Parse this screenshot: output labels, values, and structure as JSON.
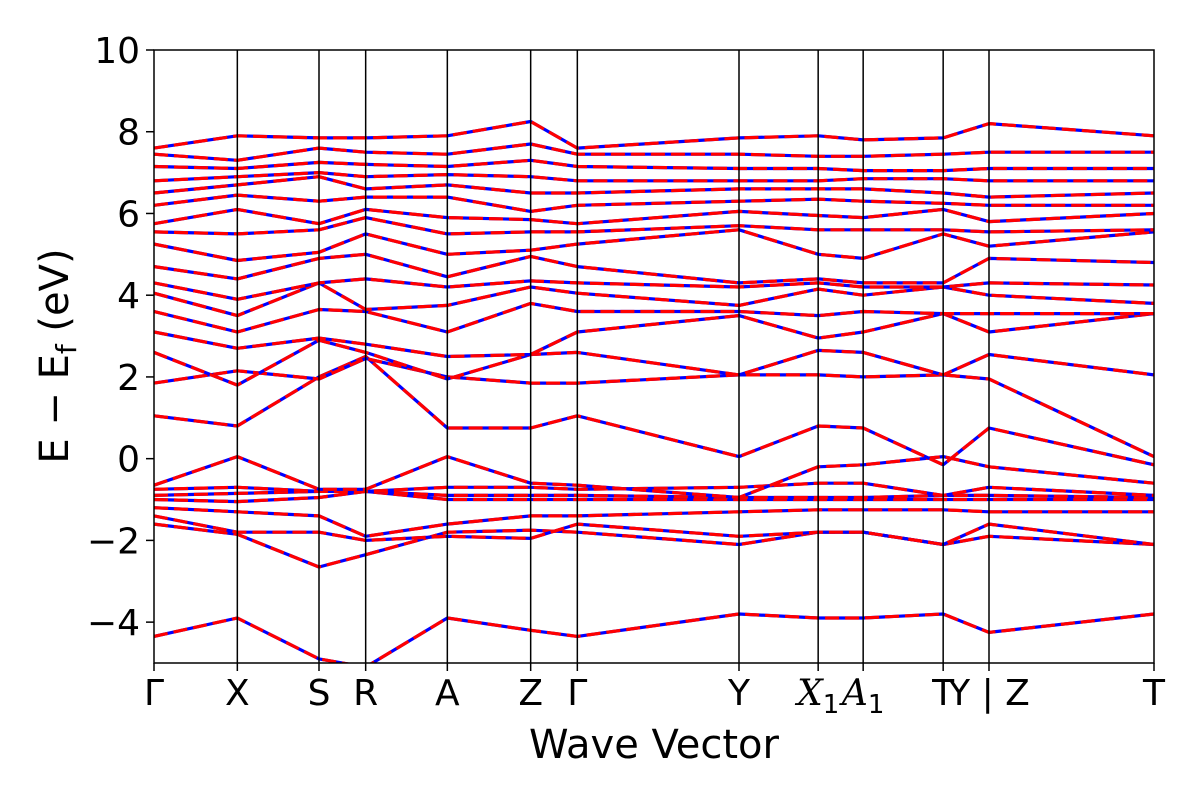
{
  "chart_data": {
    "type": "line",
    "title": "",
    "xlabel": "Wave Vector",
    "ylabel": "E − E_f (eV)",
    "ylabel_parts": {
      "main": "E − E",
      "sub": "f",
      "unit": " (eV)"
    },
    "ylim": [
      -5,
      10
    ],
    "yticks": [
      10,
      8,
      6,
      4,
      2,
      0,
      -2,
      -4
    ],
    "ytick_labels": [
      "10",
      "8",
      "6",
      "4",
      "2",
      "0",
      "−2",
      "−4"
    ],
    "xlim": [
      0,
      12
    ],
    "kpoints": [
      {
        "label": "Γ",
        "x": 0
      },
      {
        "label": "X",
        "x": 1
      },
      {
        "label": "S",
        "x": 1.98
      },
      {
        "label": "R",
        "x": 2.54
      },
      {
        "label": "A",
        "x": 3.52
      },
      {
        "label": "Z",
        "x": 4.52
      },
      {
        "label": "Γ",
        "x": 5.08
      },
      {
        "label": "Y",
        "x": 7.02
      },
      {
        "label": "X₁",
        "x": 7.97
      },
      {
        "label": "A₁",
        "x": 8.51
      },
      {
        "label": "T",
        "x": 9.47
      },
      {
        "label": "Y | Z",
        "x": 10.02
      },
      {
        "label": "T",
        "x": 12
      }
    ],
    "grid": false,
    "legend": "none",
    "series_style": {
      "colors": [
        "#ff0000",
        "#0000ff"
      ],
      "dashed": true
    },
    "series": [
      {
        "x": [
          0,
          1,
          1.98,
          2.54,
          3.52,
          4.52,
          5.08,
          7.02,
          7.97,
          8.51,
          9.47,
          10.02,
          12
        ],
        "y": [
          -4.35,
          -3.9,
          -4.9,
          -5.1,
          -3.9,
          -4.2,
          -4.35,
          -3.8,
          -3.9,
          -3.9,
          -3.8,
          -4.25,
          -3.8
        ]
      },
      {
        "x": [
          0,
          1,
          1.98,
          2.54,
          3.52,
          4.52,
          5.08,
          7.02,
          7.97,
          8.51,
          9.47,
          10.02,
          12
        ],
        "y": [
          -1.6,
          -1.85,
          -2.65,
          -2.35,
          -1.8,
          -1.75,
          -1.8,
          -2.1,
          -1.8,
          -1.8,
          -2.1,
          -1.9,
          -2.1
        ]
      },
      {
        "x": [
          0,
          1,
          1.98,
          2.54,
          3.52,
          4.52,
          5.08,
          7.02,
          7.97,
          8.51,
          9.47,
          10.02,
          12
        ],
        "y": [
          -1.4,
          -1.8,
          -1.8,
          -2.0,
          -1.9,
          -1.95,
          -1.6,
          -1.9,
          -1.8,
          -1.8,
          -2.1,
          -1.6,
          -2.1
        ]
      },
      {
        "x": [
          0,
          1,
          1.98,
          2.54,
          3.52,
          4.52,
          5.08,
          7.02,
          7.97,
          8.51,
          9.47,
          10.02,
          12
        ],
        "y": [
          -1.2,
          -1.3,
          -1.4,
          -1.9,
          -1.6,
          -1.4,
          -1.4,
          -1.3,
          -1.25,
          -1.25,
          -1.25,
          -1.3,
          -1.3
        ]
      },
      {
        "x": [
          0,
          1,
          1.98,
          2.54,
          3.52,
          4.52,
          5.08,
          7.02,
          7.97,
          8.51,
          9.47,
          10.02,
          12
        ],
        "y": [
          -1.0,
          -1.05,
          -0.95,
          -0.8,
          -1.0,
          -1.0,
          -1.0,
          -1.0,
          -1.0,
          -1.0,
          -1.0,
          -1.0,
          -1.0
        ]
      },
      {
        "x": [
          0,
          1,
          1.98,
          2.54,
          3.52,
          4.52,
          5.08,
          7.02,
          7.97,
          8.51,
          9.47,
          10.02,
          12
        ],
        "y": [
          -0.9,
          -0.85,
          -0.8,
          -0.8,
          -0.9,
          -0.9,
          -0.9,
          -0.95,
          -0.95,
          -0.95,
          -0.9,
          -0.9,
          -0.95
        ]
      },
      {
        "x": [
          0,
          1,
          1.98,
          2.54,
          3.52,
          4.52,
          5.08,
          7.02,
          7.97,
          8.51,
          9.47,
          10.02,
          12
        ],
        "y": [
          -0.75,
          -0.7,
          -0.8,
          -0.8,
          -0.7,
          -0.7,
          -0.75,
          -0.7,
          -0.6,
          -0.6,
          -0.9,
          -0.7,
          -0.9
        ]
      },
      {
        "x": [
          0,
          1,
          1.98,
          2.54,
          3.52,
          4.52,
          5.08,
          7.02,
          7.97,
          8.51,
          9.47,
          10.02,
          12
        ],
        "y": [
          -0.65,
          0.05,
          -0.75,
          -0.75,
          0.05,
          -0.6,
          -0.65,
          -0.95,
          -0.2,
          -0.15,
          0.05,
          -0.2,
          -0.6
        ]
      },
      {
        "x": [
          0,
          1,
          1.98,
          2.54,
          3.52,
          4.52,
          5.08,
          7.02,
          7.97,
          8.51,
          9.47,
          10.02,
          12
        ],
        "y": [
          1.05,
          0.8,
          2.0,
          2.5,
          0.75,
          0.75,
          1.05,
          0.05,
          0.8,
          0.75,
          -0.15,
          0.75,
          -0.15
        ]
      },
      {
        "x": [
          0,
          1,
          1.98,
          2.54,
          3.52,
          4.52,
          5.08,
          7.02,
          7.97,
          8.51,
          9.47,
          10.02,
          12
        ],
        "y": [
          1.85,
          2.15,
          1.95,
          2.45,
          2.0,
          1.85,
          1.85,
          2.05,
          2.05,
          2.0,
          2.05,
          1.95,
          0.05
        ]
      },
      {
        "x": [
          0,
          1,
          1.98,
          2.54,
          3.52,
          4.52,
          5.08,
          7.02,
          7.97,
          8.51,
          9.47,
          10.02,
          12
        ],
        "y": [
          2.6,
          1.8,
          2.9,
          2.6,
          1.95,
          2.55,
          2.6,
          2.05,
          2.65,
          2.6,
          2.05,
          2.55,
          2.05
        ]
      },
      {
        "x": [
          0,
          1,
          1.98,
          2.54,
          3.52,
          4.52,
          5.08,
          7.02,
          7.97,
          8.51,
          9.47,
          10.02,
          12
        ],
        "y": [
          3.1,
          2.7,
          2.95,
          2.8,
          2.5,
          2.55,
          3.1,
          3.5,
          2.95,
          3.1,
          3.55,
          3.1,
          3.55
        ]
      },
      {
        "x": [
          0,
          1,
          1.98,
          2.54,
          3.52,
          4.52,
          5.08,
          7.02,
          7.97,
          8.51,
          9.47,
          10.02,
          12
        ],
        "y": [
          3.6,
          3.1,
          3.65,
          3.6,
          3.1,
          3.8,
          3.6,
          3.6,
          3.5,
          3.6,
          3.55,
          3.55,
          3.55
        ]
      },
      {
        "x": [
          0,
          1,
          1.98,
          2.54,
          3.52,
          4.52,
          5.08,
          7.02,
          7.97,
          8.51,
          9.47,
          10.02,
          12
        ],
        "y": [
          4.05,
          3.5,
          4.3,
          3.65,
          3.75,
          4.2,
          4.05,
          3.75,
          4.15,
          4.0,
          4.2,
          4.0,
          3.8
        ]
      },
      {
        "x": [
          0,
          1,
          1.98,
          2.54,
          3.52,
          4.52,
          5.08,
          7.02,
          7.97,
          8.51,
          9.47,
          10.02,
          12
        ],
        "y": [
          4.3,
          3.9,
          4.3,
          4.4,
          4.2,
          4.35,
          4.3,
          4.2,
          4.3,
          4.2,
          4.2,
          4.3,
          4.25
        ]
      },
      {
        "x": [
          0,
          1,
          1.98,
          2.54,
          3.52,
          4.52,
          5.08,
          7.02,
          7.97,
          8.51,
          9.47,
          10.02,
          12
        ],
        "y": [
          4.7,
          4.4,
          4.9,
          5.0,
          4.45,
          4.95,
          4.7,
          4.3,
          4.4,
          4.3,
          4.3,
          4.9,
          4.8
        ]
      },
      {
        "x": [
          0,
          1,
          1.98,
          2.54,
          3.52,
          4.52,
          5.08,
          7.02,
          7.97,
          8.51,
          9.47,
          10.02,
          12
        ],
        "y": [
          5.25,
          4.85,
          5.05,
          5.5,
          5.0,
          5.1,
          5.25,
          5.6,
          5.0,
          4.9,
          5.5,
          5.2,
          5.55
        ]
      },
      {
        "x": [
          0,
          1,
          1.98,
          2.54,
          3.52,
          4.52,
          5.08,
          7.02,
          7.97,
          8.51,
          9.47,
          10.02,
          12
        ],
        "y": [
          5.55,
          5.5,
          5.6,
          5.9,
          5.5,
          5.55,
          5.55,
          5.7,
          5.6,
          5.6,
          5.6,
          5.55,
          5.6
        ]
      },
      {
        "x": [
          0,
          1,
          1.98,
          2.54,
          3.52,
          4.52,
          5.08,
          7.02,
          7.97,
          8.51,
          9.47,
          10.02,
          12
        ],
        "y": [
          5.75,
          6.1,
          5.75,
          6.1,
          5.9,
          5.85,
          5.75,
          6.05,
          5.95,
          5.9,
          6.1,
          5.8,
          6.0
        ]
      },
      {
        "x": [
          0,
          1,
          1.98,
          2.54,
          3.52,
          4.52,
          5.08,
          7.02,
          7.97,
          8.51,
          9.47,
          10.02,
          12
        ],
        "y": [
          6.2,
          6.45,
          6.3,
          6.4,
          6.4,
          6.05,
          6.2,
          6.3,
          6.35,
          6.3,
          6.25,
          6.2,
          6.2
        ]
      },
      {
        "x": [
          0,
          1,
          1.98,
          2.54,
          3.52,
          4.52,
          5.08,
          7.02,
          7.97,
          8.51,
          9.47,
          10.02,
          12
        ],
        "y": [
          6.5,
          6.7,
          6.9,
          6.6,
          6.7,
          6.5,
          6.5,
          6.6,
          6.6,
          6.6,
          6.5,
          6.4,
          6.5
        ]
      },
      {
        "x": [
          0,
          1,
          1.98,
          2.54,
          3.52,
          4.52,
          5.08,
          7.02,
          7.97,
          8.51,
          9.47,
          10.02,
          12
        ],
        "y": [
          6.8,
          6.9,
          7.0,
          6.9,
          6.95,
          6.9,
          6.8,
          6.8,
          6.8,
          6.85,
          6.85,
          6.8,
          6.8
        ]
      },
      {
        "x": [
          0,
          1,
          1.98,
          2.54,
          3.52,
          4.52,
          5.08,
          7.02,
          7.97,
          8.51,
          9.47,
          10.02,
          12
        ],
        "y": [
          7.15,
          7.1,
          7.25,
          7.2,
          7.15,
          7.3,
          7.15,
          7.1,
          7.1,
          7.05,
          7.05,
          7.1,
          7.1
        ]
      },
      {
        "x": [
          0,
          1,
          1.98,
          2.54,
          3.52,
          4.52,
          5.08,
          7.02,
          7.97,
          8.51,
          9.47,
          10.02,
          12
        ],
        "y": [
          7.45,
          7.3,
          7.6,
          7.5,
          7.45,
          7.7,
          7.45,
          7.45,
          7.4,
          7.4,
          7.45,
          7.5,
          7.5
        ]
      },
      {
        "x": [
          0,
          1,
          1.98,
          2.54,
          3.52,
          4.52,
          5.08,
          7.02,
          7.97,
          8.51,
          9.47,
          10.02,
          12
        ],
        "y": [
          7.6,
          7.9,
          7.85,
          7.85,
          7.9,
          8.25,
          7.6,
          7.85,
          7.9,
          7.8,
          7.85,
          8.2,
          7.9
        ]
      }
    ]
  }
}
